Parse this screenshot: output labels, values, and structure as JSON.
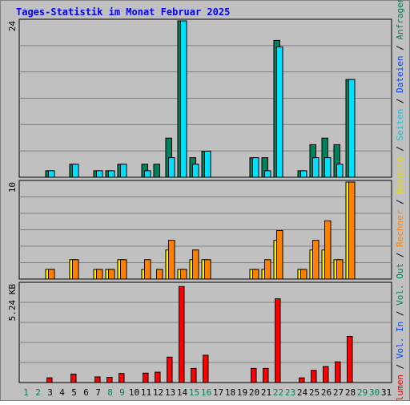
{
  "title": "Tages-Statistik im Monat Februar 2025",
  "colors": {
    "background": "#c0c0c0",
    "title": "#0000ff",
    "grid": "#808080",
    "anfragen": "#00805c",
    "dateien": "#0040ff",
    "seiten": "#00e0ff",
    "besuche": "#fff000",
    "rechner": "#ff8000",
    "out": "#00805c",
    "volumen": "#ff0000",
    "vol_in": "#0040ff",
    "weekday_label": "#000000",
    "weekend_label": "#00805c"
  },
  "right_legend": [
    {
      "text": "Volumen",
      "color": "#e00000"
    },
    {
      "text": " / ",
      "color": "#000000"
    },
    {
      "text": "Vol. In",
      "color": "#0040ff"
    },
    {
      "text": " / ",
      "color": "#000000"
    },
    {
      "text": "Vol. Out",
      "color": "#00805c"
    },
    {
      "text": " / ",
      "color": "#000000"
    },
    {
      "text": "Rechner",
      "color": "#ff8000"
    },
    {
      "text": " / ",
      "color": "#000000"
    },
    {
      "text": "Besuche",
      "color": "#e8d800"
    },
    {
      "text": " / ",
      "color": "#000000"
    },
    {
      "text": "Seiten",
      "color": "#00c8e8"
    },
    {
      "text": " / ",
      "color": "#000000"
    },
    {
      "text": "Dateien",
      "color": "#0040ff"
    },
    {
      "text": " / ",
      "color": "#000000"
    },
    {
      "text": "Anfragen",
      "color": "#00805c"
    }
  ],
  "chart_data": {
    "type": "bar",
    "x": [
      "1",
      "2",
      "3",
      "4",
      "5",
      "6",
      "7",
      "8",
      "9",
      "10",
      "11",
      "12",
      "13",
      "14",
      "15",
      "16",
      "17",
      "18",
      "19",
      "20",
      "21",
      "22",
      "23",
      "24",
      "25",
      "26",
      "27",
      "28",
      "29",
      "30",
      "31"
    ],
    "weekend_days": [
      "1",
      "2",
      "8",
      "9",
      "15",
      "16",
      "22",
      "23",
      "29",
      "30"
    ],
    "panels": [
      {
        "ylabel_max": "24",
        "ymax": 24,
        "series": [
          {
            "name": "Anfragen",
            "color": "#00805c",
            "values": [
              0,
              0,
              1,
              0,
              2,
              0,
              1,
              1,
              2,
              0,
              2,
              2,
              6,
              24,
              3,
              4,
              0,
              0,
              0,
              3,
              3,
              21,
              0,
              1,
              5,
              6,
              5,
              15,
              0,
              0,
              0
            ]
          },
          {
            "name": "Seiten",
            "color": "#00e0ff",
            "values": [
              0,
              0,
              1,
              0,
              2,
              0,
              1,
              1,
              2,
              0,
              1,
              0,
              3,
              24,
              2,
              4,
              0,
              0,
              0,
              3,
              1,
              20,
              0,
              1,
              3,
              3,
              2,
              15,
              0,
              0,
              0
            ]
          }
        ]
      },
      {
        "ylabel_max": "10",
        "ymax": 10,
        "series": [
          {
            "name": "Besuche",
            "color": "#fff000",
            "values": [
              0,
              0,
              1,
              0,
              2,
              0,
              1,
              1,
              2,
              0,
              1,
              0,
              3,
              1,
              2,
              2,
              0,
              0,
              0,
              1,
              1,
              4,
              0,
              1,
              3,
              3,
              2,
              10,
              0,
              0,
              0
            ]
          },
          {
            "name": "Rechner",
            "color": "#ff8000",
            "values": [
              0,
              0,
              1,
              0,
              2,
              0,
              1,
              1,
              2,
              0,
              2,
              1,
              4,
              1,
              3,
              2,
              0,
              0,
              0,
              1,
              2,
              5,
              0,
              1,
              4,
              6,
              2,
              10,
              0,
              0,
              0
            ]
          }
        ]
      },
      {
        "ylabel_max": "5.24 KB",
        "ymax": 5.24,
        "series": [
          {
            "name": "Volumen",
            "color": "#ff0000",
            "values": [
              0,
              0,
              0.25,
              0,
              0.45,
              0,
              0.3,
              0.28,
              0.48,
              0,
              0.5,
              0.55,
              1.35,
              5.1,
              0.75,
              1.45,
              0,
              0,
              0,
              0.75,
              0.75,
              4.45,
              0,
              0.25,
              0.65,
              0.85,
              1.1,
              2.45,
              0,
              0,
              0
            ]
          }
        ]
      }
    ]
  }
}
